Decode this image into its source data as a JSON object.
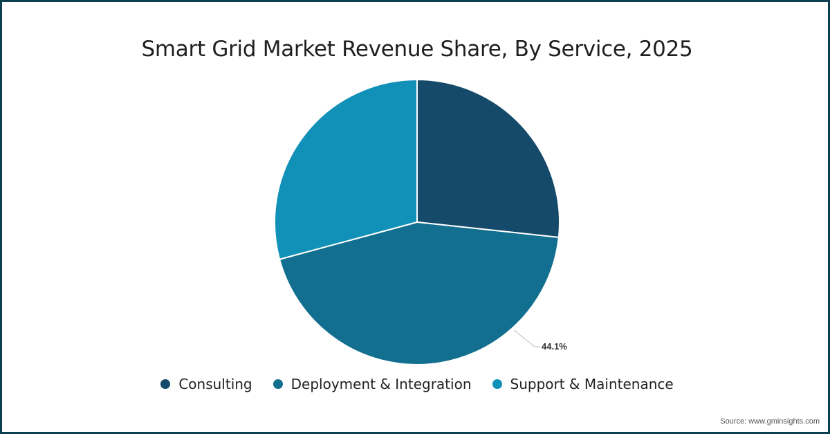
{
  "chart_data": {
    "type": "pie",
    "title": "Smart Grid Market Revenue Share, By Service, 2025",
    "categories": [
      "Consulting",
      "Deployment & Integration",
      "Support & Maintenance"
    ],
    "values": [
      26.7,
      44.1,
      29.2
    ],
    "colors": [
      "#164a6b",
      "#136f8f",
      "#1190b8"
    ],
    "data_labels": [
      {
        "category": "Deployment & Integration",
        "text": "44.1%"
      }
    ],
    "legend_position": "bottom",
    "start_angle_deg": 0,
    "direction": "clockwise"
  },
  "title": "Smart Grid Market Revenue Share, By Service, 2025",
  "legend": [
    {
      "label": "Consulting",
      "color": "#164a6b"
    },
    {
      "label": "Deployment & Integration",
      "color": "#136f8f"
    },
    {
      "label": "Support & Maintenance",
      "color": "#1190b8"
    }
  ],
  "data_label": "44.1%",
  "source": "Source: www.gminsights.com",
  "frame_color": "#0e3f50"
}
